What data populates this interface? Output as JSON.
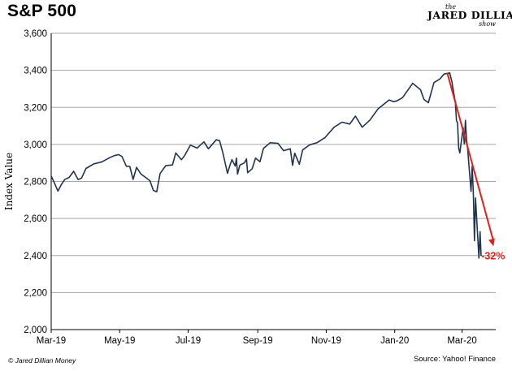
{
  "header": {
    "title": "S&P 500",
    "brand_the": "the",
    "brand_name": "JARED DILLIAN",
    "brand_show": "show"
  },
  "footer": {
    "copyright": "© Jared Dillian Money",
    "source": "Source: Yahoo! Finance"
  },
  "colors": {
    "line": "#1f3450",
    "annotation": "#e0201b",
    "grid": "#a6a6a6"
  },
  "chart_data": {
    "type": "line",
    "title": "S&P 500",
    "xlabel": "",
    "ylabel": "Index Value",
    "ylim": [
      2000,
      3600
    ],
    "yticks": [
      2000,
      2200,
      2400,
      2600,
      2800,
      3000,
      3200,
      3400,
      3600
    ],
    "ytick_labels": [
      "2,000",
      "2,200",
      "2,400",
      "2,600",
      "2,800",
      "3,000",
      "3,200",
      "3,400",
      "3,600"
    ],
    "xlim": [
      "2019-03-01",
      "2020-03-31"
    ],
    "xticks": [
      "2019-03-01",
      "2019-05-01",
      "2019-07-01",
      "2019-09-01",
      "2019-11-01",
      "2020-01-01",
      "2020-03-01"
    ],
    "xtick_labels": [
      "Mar-19",
      "May-19",
      "Jul-19",
      "Sep-19",
      "Nov-19",
      "Jan-20",
      "Mar-20"
    ],
    "grid": "horizontal",
    "series": [
      {
        "x": [
          "2019-03-01",
          "2019-03-04",
          "2019-03-07",
          "2019-03-10",
          "2019-03-13",
          "2019-03-17",
          "2019-03-21",
          "2019-03-25",
          "2019-03-28",
          "2019-04-01",
          "2019-04-08",
          "2019-04-15",
          "2019-04-22",
          "2019-04-26",
          "2019-04-30",
          "2019-05-03",
          "2019-05-07",
          "2019-05-10",
          "2019-05-13",
          "2019-05-16",
          "2019-05-20",
          "2019-05-24",
          "2019-05-28",
          "2019-05-31",
          "2019-06-03",
          "2019-06-06",
          "2019-06-11",
          "2019-06-17",
          "2019-06-20",
          "2019-06-25",
          "2019-06-28",
          "2019-07-03",
          "2019-07-09",
          "2019-07-15",
          "2019-07-19",
          "2019-07-26",
          "2019-07-29",
          "2019-08-01",
          "2019-08-05",
          "2019-08-07",
          "2019-08-09",
          "2019-08-12",
          "2019-08-13",
          "2019-08-14",
          "2019-08-16",
          "2019-08-20",
          "2019-08-22",
          "2019-08-23",
          "2019-08-27",
          "2019-08-30",
          "2019-09-03",
          "2019-09-06",
          "2019-09-12",
          "2019-09-19",
          "2019-09-24",
          "2019-09-30",
          "2019-10-02",
          "2019-10-04",
          "2019-10-08",
          "2019-10-11",
          "2019-10-17",
          "2019-10-24",
          "2019-10-31",
          "2019-11-08",
          "2019-11-15",
          "2019-11-22",
          "2019-11-27",
          "2019-12-03",
          "2019-12-10",
          "2019-12-17",
          "2019-12-27",
          "2019-12-31",
          "2020-01-03",
          "2020-01-08",
          "2020-01-17",
          "2020-01-24",
          "2020-01-27",
          "2020-01-31",
          "2020-02-05",
          "2020-02-10",
          "2020-02-14",
          "2020-02-19",
          "2020-02-21",
          "2020-02-24",
          "2020-02-25",
          "2020-02-26",
          "2020-02-27",
          "2020-02-28",
          "2020-03-02",
          "2020-03-03",
          "2020-03-04",
          "2020-03-05",
          "2020-03-06",
          "2020-03-09",
          "2020-03-10",
          "2020-03-11",
          "2020-03-12",
          "2020-03-13",
          "2020-03-16",
          "2020-03-17",
          "2020-03-18"
        ],
        "y": [
          2830,
          2790,
          2748,
          2783,
          2810,
          2822,
          2855,
          2810,
          2818,
          2870,
          2895,
          2905,
          2928,
          2939,
          2945,
          2935,
          2882,
          2881,
          2811,
          2876,
          2840,
          2822,
          2803,
          2752,
          2744,
          2843,
          2885,
          2889,
          2954,
          2917,
          2941,
          2996,
          2980,
          3014,
          2976,
          3025,
          3020,
          2953,
          2844,
          2883,
          2918,
          2883,
          2926,
          2840,
          2888,
          2900,
          2922,
          2847,
          2869,
          2926,
          2906,
          2978,
          3009,
          3006,
          2966,
          2976,
          2887,
          2952,
          2893,
          2970,
          2997,
          3010,
          3037,
          3093,
          3120,
          3110,
          3153,
          3093,
          3132,
          3191,
          3240,
          3231,
          3235,
          3253,
          3330,
          3295,
          3243,
          3225,
          3334,
          3352,
          3380,
          3386,
          3337,
          3225,
          3128,
          3116,
          2979,
          2954,
          3090,
          3003,
          3130,
          3023,
          2972,
          2746,
          2882,
          2741,
          2480,
          2711,
          2386,
          2529,
          2398
        ]
      }
    ],
    "annotations": [
      {
        "text": "-32%",
        "arrow_from": [
          "2020-02-19",
          3386
        ],
        "arrow_to": [
          "2020-03-29",
          2450
        ]
      }
    ]
  }
}
